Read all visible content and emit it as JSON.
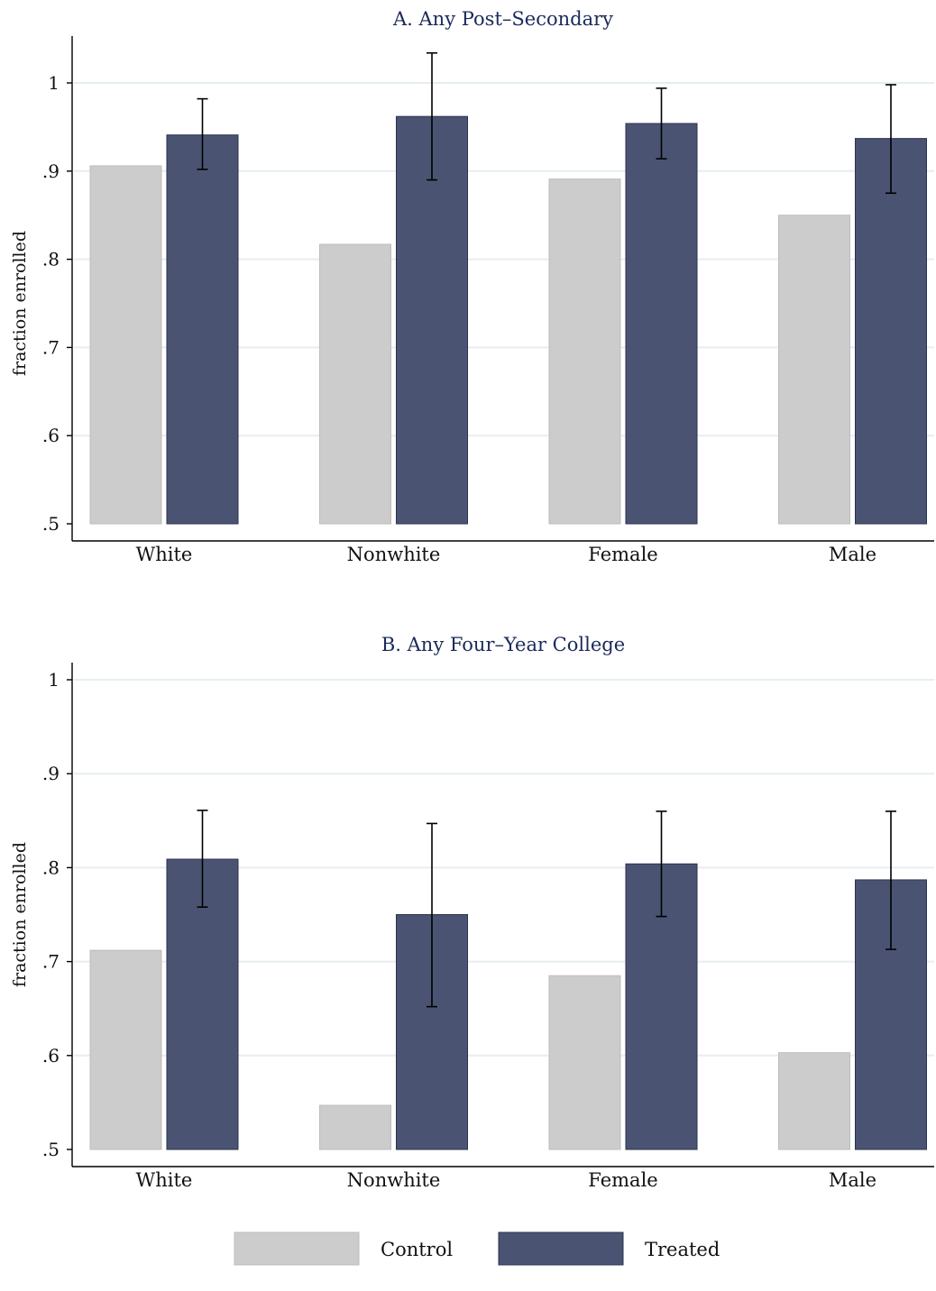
{
  "chart_data": [
    {
      "type": "bar",
      "title": "A. Any Post–Secondary",
      "ylabel": "fraction enrolled",
      "xlabel": "",
      "ylim": [
        0.5,
        1.05
      ],
      "yticks": [
        0.5,
        0.6,
        0.7,
        0.8,
        0.9,
        1.0
      ],
      "ytick_labels": [
        ".5",
        ".6",
        ".7",
        ".8",
        ".9",
        "1"
      ],
      "grid": true,
      "categories": [
        "White",
        "Nonwhite",
        "Female",
        "Male"
      ],
      "series": [
        {
          "name": "Control",
          "color": "#cccccc",
          "values": [
            0.906,
            0.817,
            0.891,
            0.85
          ]
        },
        {
          "name": "Treated",
          "color": "#4a5472",
          "values": [
            0.941,
            0.962,
            0.954,
            0.937
          ],
          "error_low": [
            0.902,
            0.89,
            0.914,
            0.875
          ],
          "error_high": [
            0.982,
            1.034,
            0.994,
            0.998
          ]
        }
      ]
    },
    {
      "type": "bar",
      "title": "B. Any Four–Year College",
      "ylabel": "fraction enrolled",
      "xlabel": "",
      "ylim": [
        0.5,
        1.02
      ],
      "yticks": [
        0.5,
        0.6,
        0.7,
        0.8,
        0.9,
        1.0
      ],
      "ytick_labels": [
        ".5",
        ".6",
        ".7",
        ".8",
        ".9",
        "1"
      ],
      "grid": true,
      "categories": [
        "White",
        "Nonwhite",
        "Female",
        "Male"
      ],
      "series": [
        {
          "name": "Control",
          "color": "#cccccc",
          "values": [
            0.712,
            0.547,
            0.685,
            0.603
          ]
        },
        {
          "name": "Treated",
          "color": "#4a5472",
          "values": [
            0.809,
            0.75,
            0.804,
            0.787
          ],
          "error_low": [
            0.758,
            0.652,
            0.748,
            0.713
          ],
          "error_high": [
            0.861,
            0.847,
            0.86,
            0.86
          ]
        }
      ]
    }
  ],
  "legend": {
    "position": "bottom",
    "items": [
      {
        "label": "Control",
        "color": "#cccccc"
      },
      {
        "label": "Treated",
        "color": "#4a5472"
      }
    ]
  }
}
